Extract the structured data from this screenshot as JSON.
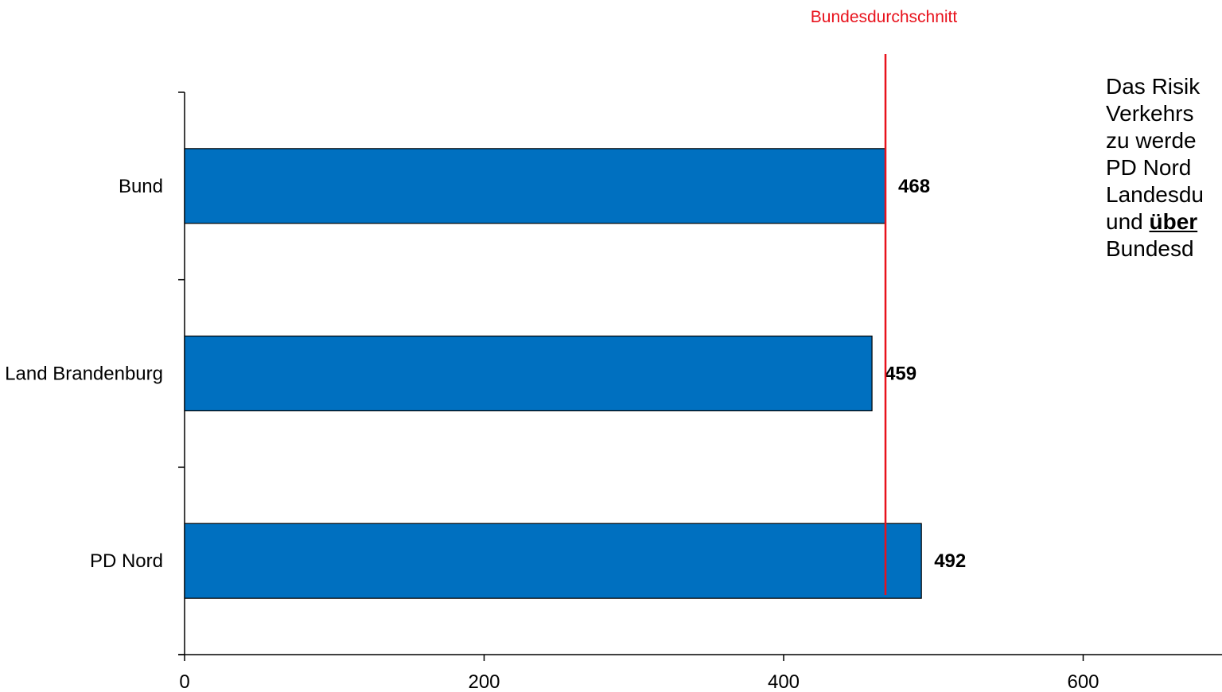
{
  "chart_data": {
    "type": "bar",
    "orientation": "horizontal",
    "categories": [
      "Bund",
      "Land Brandenburg",
      "PD Nord"
    ],
    "values": [
      468,
      459,
      492
    ],
    "value_labels": [
      "468",
      "459",
      "492"
    ],
    "bar_color": "#0070c0",
    "xlim": [
      0,
      700
    ],
    "x_ticks": [
      0,
      200,
      400,
      600
    ],
    "x_tick_labels": [
      "0",
      "200",
      "400",
      "600"
    ],
    "grid": false,
    "reference_line": {
      "value": 468,
      "label": "Bundesdurchschnitt",
      "color": "#e8121c"
    }
  },
  "side_text": {
    "line1": "Das Risik",
    "line2": "Verkehrs",
    "line3": "zu werde",
    "line4": "PD Nord",
    "line5": "Landesdu",
    "line6_prefix": "und ",
    "line6_bold": "über",
    "line7": "Bundesd"
  }
}
